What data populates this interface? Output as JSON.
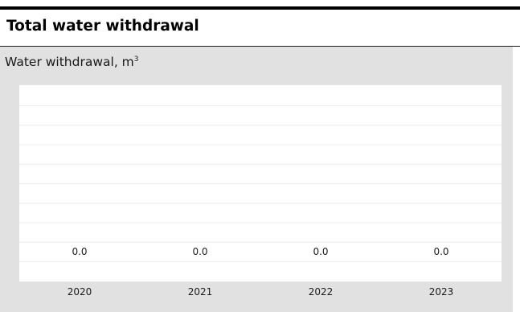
{
  "header": {
    "title": "Total water withdrawal"
  },
  "chart_data": {
    "type": "bar",
    "title": "Total water withdrawal",
    "ylabel": "Water withdrawal, m",
    "ylabel_superscript": "3",
    "categories": [
      "2020",
      "2021",
      "2022",
      "2023"
    ],
    "values": [
      0.0,
      0.0,
      0.0,
      0.0
    ],
    "value_labels": [
      "0.0",
      "0.0",
      "0.0",
      "0.0"
    ],
    "ylim": [
      0,
      1
    ],
    "grid": true,
    "legend": "none",
    "colors": {
      "panel_background": "#e1e1e1",
      "plot_background": "#ffffff",
      "gridline": "#ececec",
      "text": "#1a1a1a"
    }
  }
}
